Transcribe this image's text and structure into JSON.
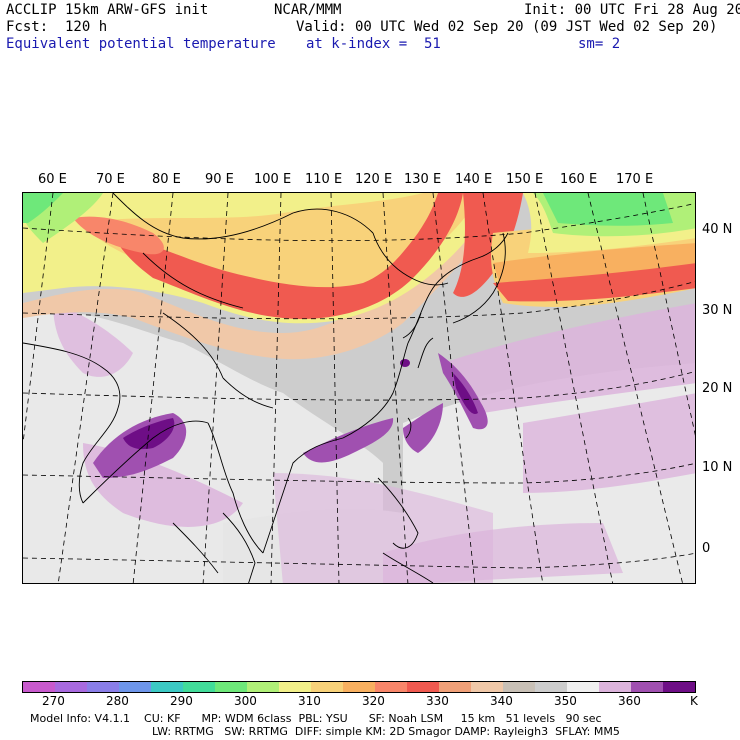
{
  "header": {
    "model": "ACCLIP 15km ARW-GFS init",
    "org": "NCAR/MMM",
    "init": "Init: 00 UTC Fri 28 Aug 20",
    "fcst": "Fcst:  120 h",
    "valid": "Valid: 00 UTC Wed 02 Sep 20 (09 JST Wed 02 Sep 20)",
    "field": "Equivalent potential temperature",
    "level": "at k-index =  51",
    "smooth": "sm= 2"
  },
  "longitude_labels": [
    "60 E",
    "70 E",
    "80 E",
    "90 E",
    "100 E",
    "110 E",
    "120 E",
    "130 E",
    "140 E",
    "150 E",
    "160 E",
    "170 E"
  ],
  "latitude_labels": [
    "40 N",
    "30 N",
    "20 N",
    "10 N",
    "0"
  ],
  "colorbar": {
    "labels": [
      "270",
      "280",
      "290",
      "300",
      "310",
      "320",
      "330",
      "340",
      "350",
      "360"
    ],
    "unit": "K",
    "colors": [
      "#c85acd",
      "#a86adf",
      "#8a7ee8",
      "#6e96ea",
      "#3cc9c4",
      "#42dc9a",
      "#6ee87a",
      "#b0f078",
      "#f2f08a",
      "#f8d27a",
      "#f8b060",
      "#f8866a",
      "#f05a50",
      "#f0a078",
      "#f0c8a8",
      "#c8c0b6",
      "#cdcdcd",
      "#f0f0f0",
      "#dcb4dc",
      "#a050b0",
      "#6e0e86"
    ]
  },
  "footer": {
    "line1": "Model Info: V4.1.1    CU: KF      MP: WDM 6class  PBL: YSU      SF: Noah LSM     15 km   51 levels   90 sec",
    "line2": "LW: RRTMG   SW: RRTMG  DIFF: simple KM: 2D Smagor DAMP: Rayleigh3  SFLAY: MM5"
  }
}
